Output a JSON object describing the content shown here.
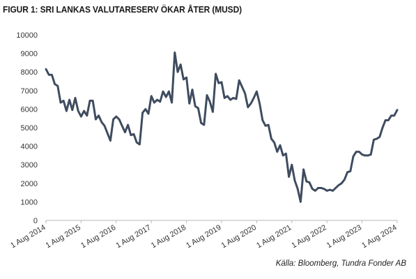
{
  "title": "FIGUR 1: SRI LANKAS VALUTARESERV ÖKAR ÅTER (MUSD)",
  "source": "Källa: Bloomberg, Tundra Fonder AB",
  "chart_data": {
    "type": "line",
    "title": "FIGUR 1: SRI LANKAS VALUTARESERV ÖKAR ÅTER (MUSD)",
    "xlabel": "",
    "ylabel": "",
    "ylim": [
      0,
      10000
    ],
    "yticks": [
      0,
      1000,
      2000,
      3000,
      4000,
      5000,
      6000,
      7000,
      8000,
      9000,
      10000
    ],
    "xticks": [
      "1 Aug 2014",
      "1 Aug 2015",
      "1 Aug 2016",
      "1 Aug 2017",
      "1 Aug 2018",
      "1 Aug 2019",
      "1 Aug 2020",
      "1 Aug 2021",
      "1 Aug 2022",
      "1 Aug 2023",
      "1 Aug 2024"
    ],
    "grid": false,
    "line_color": "#3f4c5f",
    "series": [
      {
        "values": [
          8150,
          7850,
          7850,
          7350,
          7250,
          6350,
          6450,
          5900,
          6500,
          5950,
          6600,
          5900,
          5600,
          5900,
          5650,
          6450,
          6450,
          5450,
          5650,
          5300,
          5100,
          4700,
          4300,
          5450,
          5600,
          5450,
          5100,
          4750,
          5150,
          4600,
          4650,
          4200,
          4100,
          5800,
          6000,
          5750,
          6700,
          6350,
          6500,
          6400,
          6950,
          6650,
          6950,
          6350,
          9050,
          8000,
          8400,
          7600,
          7700,
          6300,
          7050,
          6150,
          6050,
          5250,
          5150,
          6750,
          6400,
          5850,
          7900,
          7400,
          7450,
          6600,
          6700,
          6500,
          6600,
          6550,
          7550,
          7200,
          6850,
          6100,
          6300,
          6600,
          6950,
          6300,
          5400,
          5100,
          5150,
          4400,
          4200,
          3700,
          4050,
          3500,
          3600,
          2350,
          3000,
          2150,
          1700,
          1000,
          2750,
          2100,
          2050,
          1700,
          1600,
          1750,
          1750,
          1700,
          1600,
          1650,
          1600,
          1750,
          1900,
          2000,
          2200,
          2600,
          2650,
          3450,
          3700,
          3700,
          3550,
          3500,
          3500,
          3550,
          4350,
          4400,
          4500,
          5000,
          5400,
          5400,
          5650,
          5650,
          5950
        ]
      }
    ]
  }
}
